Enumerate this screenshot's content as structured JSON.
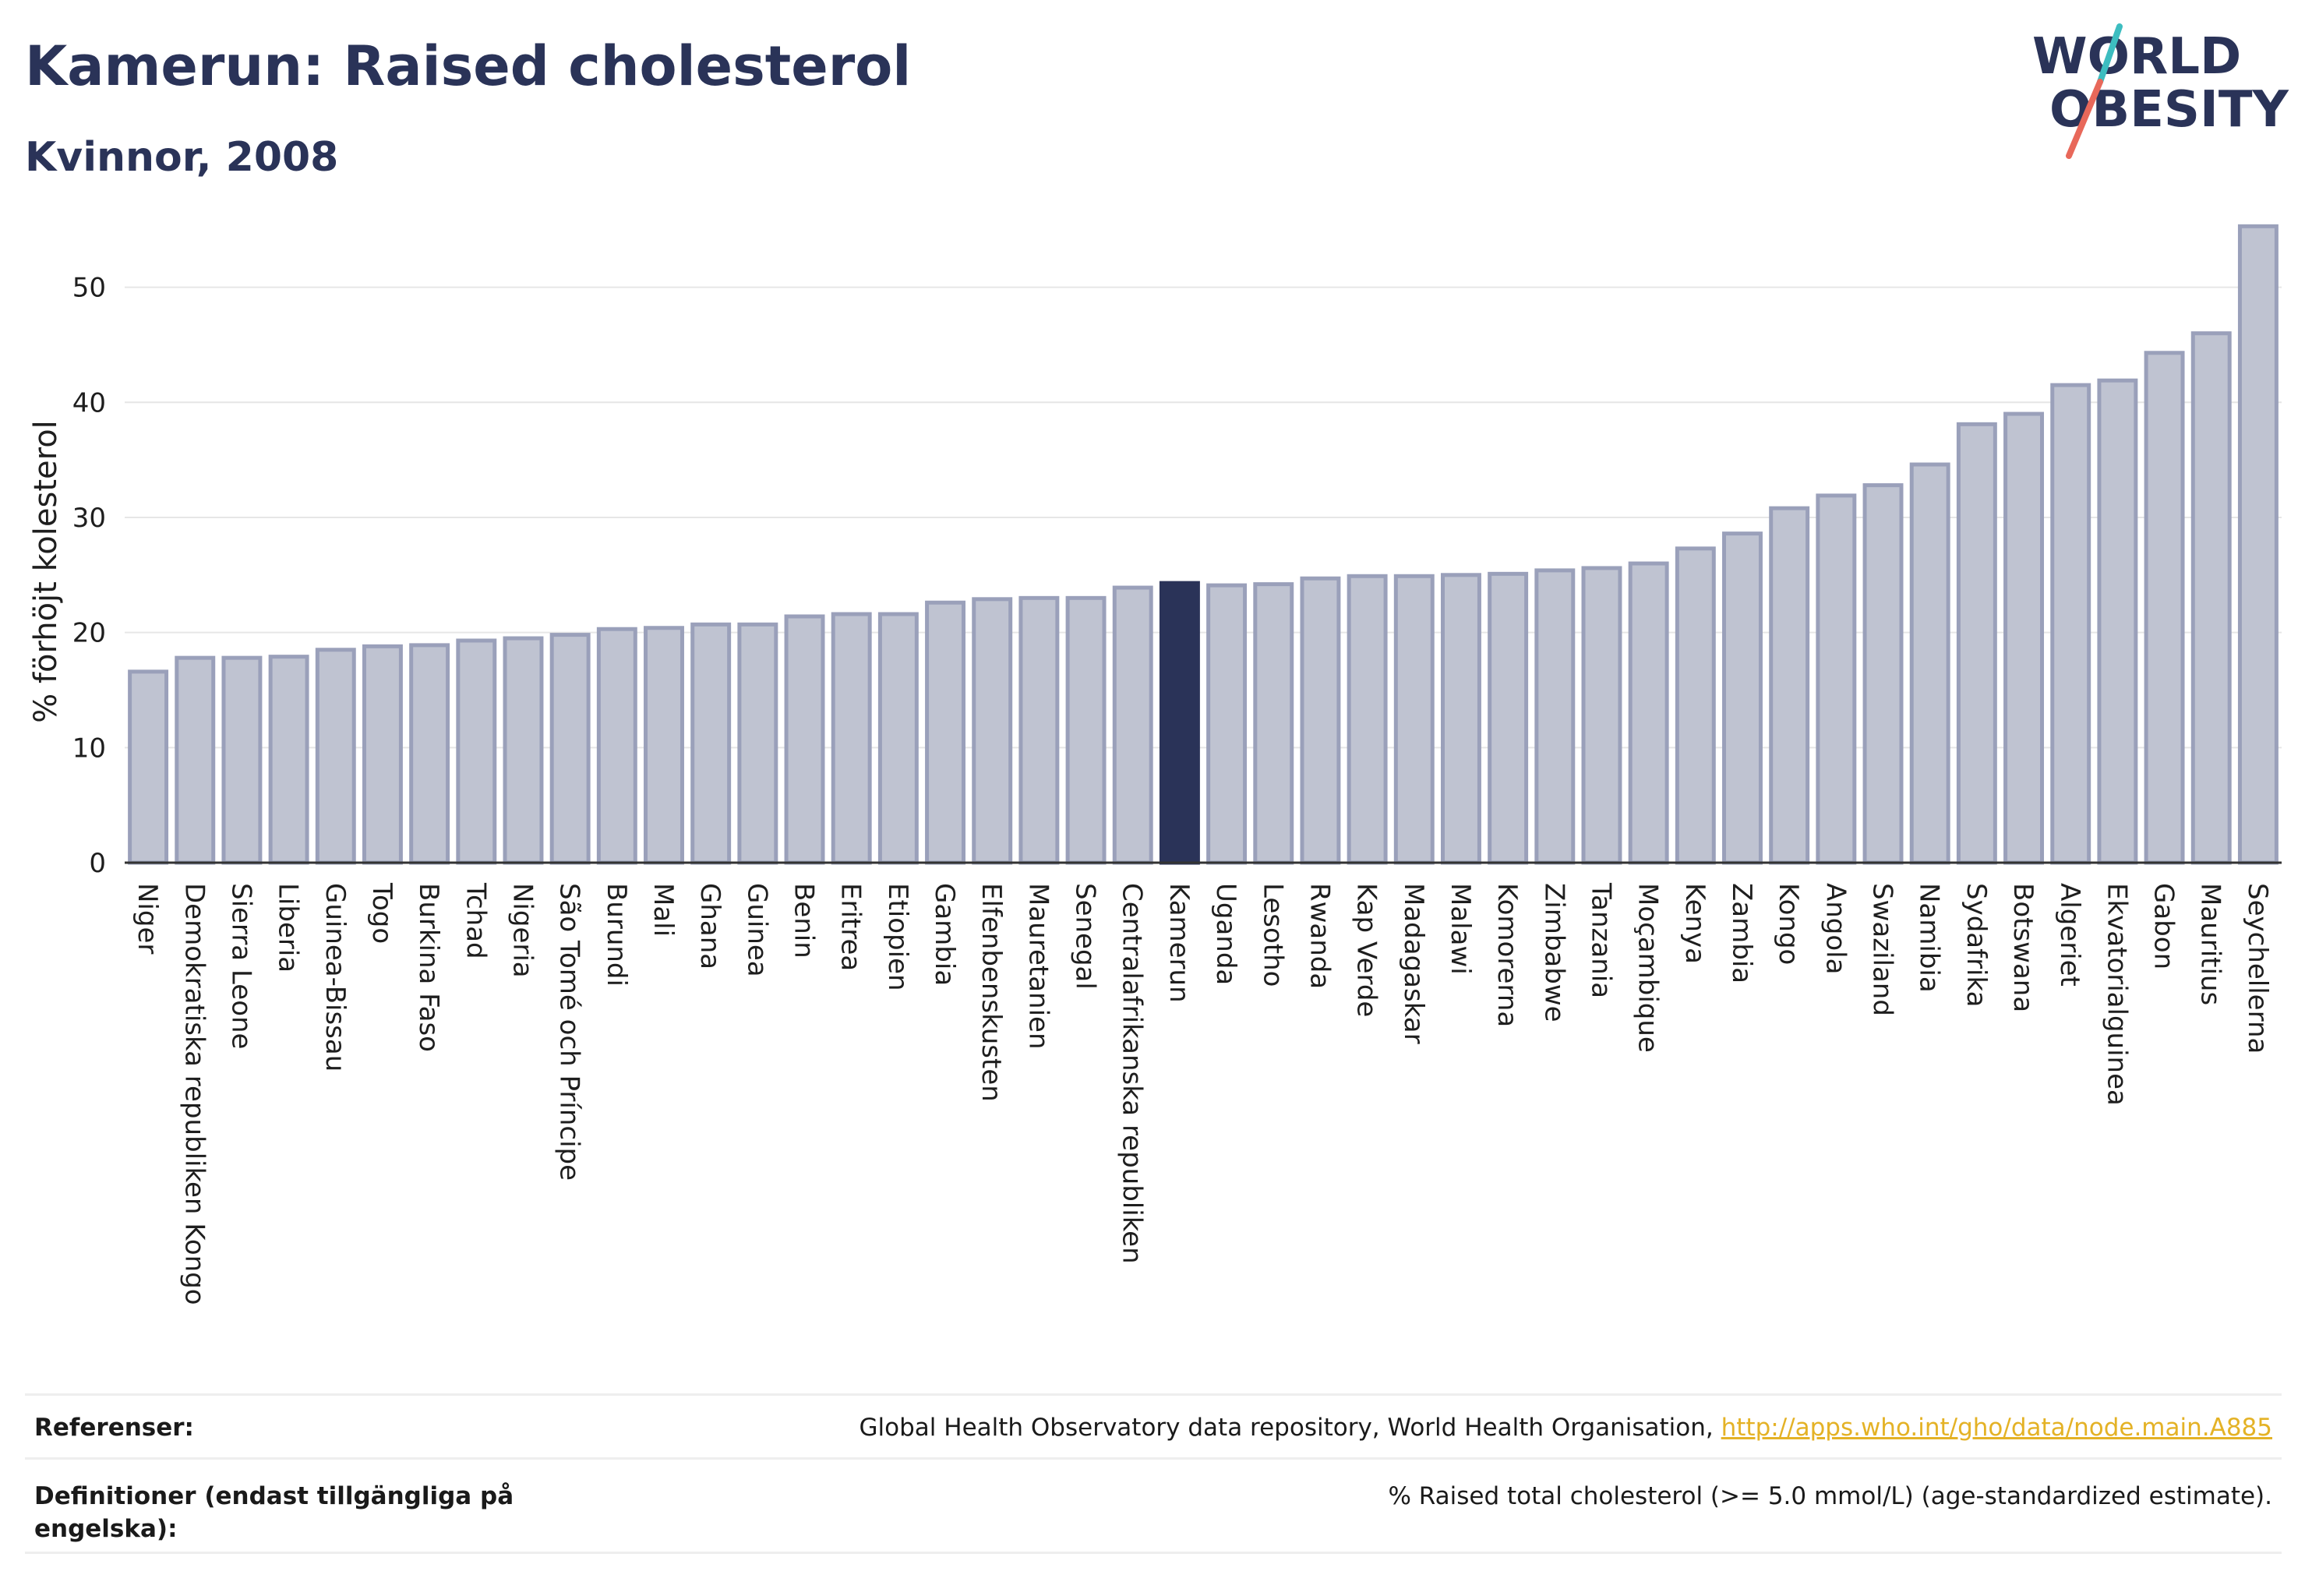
{
  "header": {
    "title": "Kamerun: Raised cholesterol",
    "subtitle": "Kvinnor, 2008"
  },
  "logo": {
    "line1": "WORLD",
    "line2": "OBESITY"
  },
  "colors": {
    "bar_default": "#bfc3d1",
    "bar_stroke": "#9aa0ba",
    "bar_highlight": "#2a3358",
    "title": "#2a3358",
    "link": "#e4b226",
    "logo_slash_top": "#3dbdc0",
    "logo_slash_bottom": "#e8685a"
  },
  "chart_data": {
    "type": "bar",
    "title": "Kamerun: Raised cholesterol",
    "subtitle": "Kvinnor, 2008",
    "xlabel": "",
    "ylabel": "% förhöjt kolesterol",
    "ylim": [
      0,
      56
    ],
    "yticks": [
      0,
      10,
      20,
      30,
      40,
      50
    ],
    "grid": true,
    "highlight": "Kamerun",
    "categories": [
      "Niger",
      "Demokratiska republiken Kongo",
      "Sierra Leone",
      "Liberia",
      "Guinea-Bissau",
      "Togo",
      "Burkina Faso",
      "Tchad",
      "Nigeria",
      "São Tomé och Príncipe",
      "Burundi",
      "Mali",
      "Ghana",
      "Guinea",
      "Benin",
      "Eritrea",
      "Etiopien",
      "Gambia",
      "Elfenbenskusten",
      "Mauretanien",
      "Senegal",
      "Centralafrikanska republiken",
      "Kamerun",
      "Uganda",
      "Lesotho",
      "Rwanda",
      "Kap Verde",
      "Madagaskar",
      "Malawi",
      "Komorerna",
      "Zimbabwe",
      "Tanzania",
      "Moçambique",
      "Kenya",
      "Zambia",
      "Kongo",
      "Angola",
      "Swaziland",
      "Namibia",
      "Sydafrika",
      "Botswana",
      "Algeriet",
      "Ekvatorialguinea",
      "Gabon",
      "Mauritius",
      "Seychellerna"
    ],
    "values": [
      16.6,
      17.8,
      17.8,
      17.9,
      18.5,
      18.8,
      18.9,
      19.3,
      19.5,
      19.8,
      20.3,
      20.4,
      20.7,
      20.7,
      21.4,
      21.6,
      21.6,
      22.6,
      22.9,
      23.0,
      23.0,
      23.9,
      24.3,
      24.1,
      24.2,
      24.7,
      24.9,
      24.9,
      25.0,
      25.1,
      25.4,
      25.6,
      26.0,
      27.3,
      28.6,
      30.8,
      31.9,
      32.8,
      34.6,
      38.1,
      39.0,
      41.5,
      41.9,
      44.3,
      46.0,
      55.3
    ]
  },
  "footer": {
    "references_label": "Referenser:",
    "references_text": "Global Health Observatory data repository, World Health Organisation, ",
    "references_link": "http://apps.who.int/gho/data/node.main.A885",
    "definitions_label": "Definitioner (endast tillgängliga på engelska):",
    "definitions_text": "% Raised total cholesterol (>= 5.0 mmol/L) (age-standardized estimate)."
  }
}
